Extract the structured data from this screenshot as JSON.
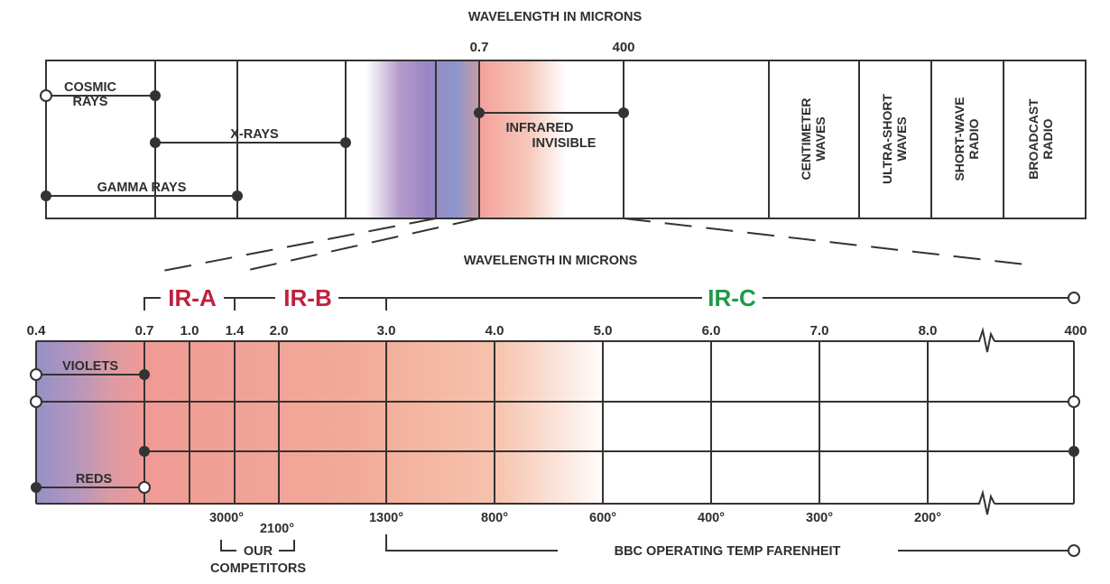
{
  "colors": {
    "ink": "#333333",
    "ir_red": "#c0213d",
    "ir_green": "#1e9a48",
    "violet": "#9a86c4",
    "blue": "#8a95cc",
    "infrared_pink": "#f09a96"
  },
  "top_chart": {
    "title": "WAVELENGTH IN MICRONS",
    "tick_07": "0.7",
    "tick_400": "400",
    "cosmic_line1": "COSMIC",
    "cosmic_line2": "RAYS",
    "xrays": "X-RAYS",
    "gamma": "GAMMA RAYS",
    "infrared_line1": "INFRARED",
    "infrared_line2": "INVISIBLE",
    "columns": [
      {
        "line1": "CENTIMETER",
        "line2": "WAVES"
      },
      {
        "line1": "ULTRA-SHORT",
        "line2": "WAVES"
      },
      {
        "line1": "SHORT-WAVE",
        "line2": "RADIO"
      },
      {
        "line1": "BROADCAST",
        "line2": "RADIO"
      }
    ]
  },
  "bottom_chart": {
    "title": "WAVELENGTH IN MICRONS",
    "band_a": "IR-A",
    "band_b": "IR-B",
    "band_c": "IR-C",
    "ticks": [
      "0.4",
      "0.7",
      "1.0",
      "1.4",
      "2.0",
      "3.0",
      "4.0",
      "5.0",
      "6.0",
      "7.0",
      "8.0",
      "400"
    ],
    "violets": "VIOLETS",
    "reds": "REDS",
    "temps": [
      "3000°",
      "2100°",
      "1300°",
      "800°",
      "600°",
      "400°",
      "300°",
      "200°"
    ],
    "competitors_line1": "OUR",
    "competitors_line2": "COMPETITORS",
    "bbc_label": "BBC OPERATING TEMP FARENHEIT"
  }
}
